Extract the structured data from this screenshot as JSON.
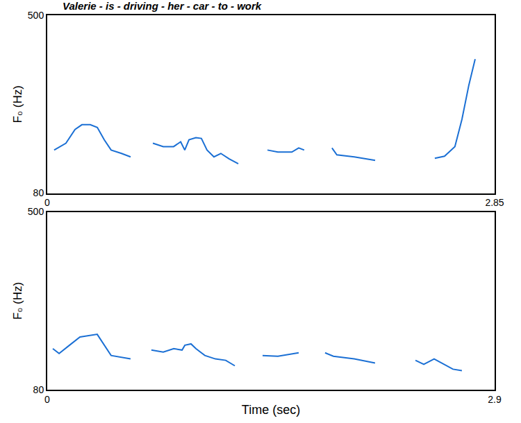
{
  "chart_data": [
    {
      "type": "line",
      "title": "Valerie - is - driving - her - car - to - work",
      "ylabel": "F₀ (Hz)",
      "color": "#1a6fd4",
      "grid": false,
      "x": [
        0.044,
        0.119,
        0.177,
        0.221,
        0.274,
        0.319,
        0.363,
        0.407,
        0.473,
        0.531,
        null,
        0.673,
        0.739,
        0.805,
        0.85,
        0.876,
        0.903,
        0.947,
        0.982,
        1.018,
        1.062,
        1.106,
        1.159,
        1.217,
        null,
        1.403,
        1.469,
        1.558,
        1.602,
        1.637,
        null,
        1.814,
        1.845,
        1.956,
        2.089,
        null,
        2.469,
        2.531,
        2.597,
        2.642,
        2.686,
        2.726
      ],
      "values": [
        181.7,
        197.9,
        230.2,
        241.5,
        241.5,
        235.0,
        206.0,
        181.7,
        173.7,
        165.6,
        null,
        197.9,
        189.8,
        189.8,
        201.1,
        181.7,
        206.0,
        210.8,
        209.2,
        181.7,
        165.6,
        173.7,
        160.8,
        149.4,
        null,
        181.7,
        176.9,
        176.9,
        186.6,
        181.7,
        null,
        186.6,
        170.4,
        165.6,
        157.5,
        null,
        162.4,
        167.2,
        189.8,
        254.4,
        335.2,
        396.5
      ],
      "xlim": [
        0,
        2.85
      ],
      "xticks": [
        0,
        2.85
      ],
      "ylim": [
        80,
        500
      ],
      "yticks": [
        80,
        500
      ]
    },
    {
      "type": "line",
      "ylabel": "F₀ (Hz)",
      "xlabel": "Time (sec)",
      "color": "#1a6fd4",
      "grid": false,
      "x": [
        0.036,
        0.077,
        0.144,
        0.212,
        0.324,
        0.369,
        0.414,
        0.54,
        null,
        0.675,
        0.752,
        0.82,
        0.874,
        0.892,
        0.932,
        0.964,
        1.022,
        1.09,
        1.157,
        1.216,
        null,
        1.396,
        1.495,
        1.63,
        null,
        1.801,
        1.855,
        1.99,
        2.125,
        null,
        2.387,
        2.441,
        2.508,
        2.567,
        2.63,
        2.688
      ],
      "values": [
        176.9,
        165.6,
        185.0,
        204.4,
        210.8,
        185.0,
        160.8,
        152.7,
        null,
        173.7,
        168.8,
        176.9,
        173.7,
        185.0,
        188.2,
        176.9,
        160.8,
        152.7,
        149.4,
        136.5,
        null,
        160.8,
        159.1,
        167.2,
        null,
        167.2,
        159.1,
        152.7,
        143.0,
        null,
        149.4,
        139.8,
        152.7,
        141.4,
        128.5,
        125.2
      ],
      "xlim": [
        0,
        2.9
      ],
      "xticks": [
        0,
        2.9
      ],
      "ylim": [
        80,
        500
      ],
      "yticks": [
        80,
        500
      ]
    }
  ]
}
